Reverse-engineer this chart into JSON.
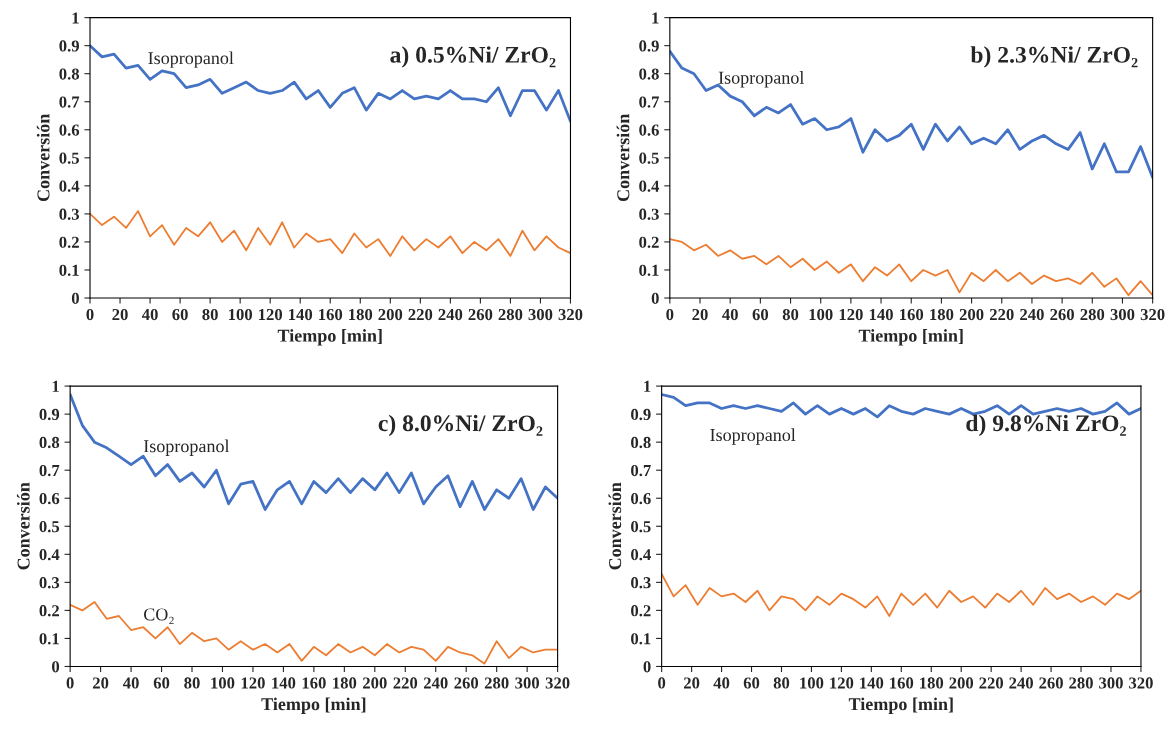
{
  "chart_data": [
    {
      "type": "line",
      "title": "a) 0.5%Ni/ ZrO₂",
      "xlabel": "Tiempo [min]",
      "ylabel": "Conversión",
      "x": [
        0,
        8,
        16,
        24,
        32,
        40,
        48,
        56,
        64,
        72,
        80,
        88,
        96,
        104,
        112,
        120,
        128,
        136,
        144,
        152,
        160,
        168,
        176,
        184,
        192,
        200,
        208,
        216,
        224,
        232,
        240,
        248,
        256,
        264,
        272,
        280,
        288,
        296,
        304,
        312,
        320
      ],
      "series": [
        {
          "color": "#4472c4",
          "values": [
            0.9,
            0.86,
            0.87,
            0.82,
            0.83,
            0.78,
            0.81,
            0.8,
            0.75,
            0.76,
            0.78,
            0.73,
            0.75,
            0.77,
            0.74,
            0.73,
            0.74,
            0.77,
            0.71,
            0.74,
            0.68,
            0.73,
            0.75,
            0.67,
            0.73,
            0.71,
            0.74,
            0.71,
            0.72,
            0.71,
            0.74,
            0.71,
            0.71,
            0.7,
            0.75,
            0.65,
            0.74,
            0.74,
            0.67,
            0.74,
            0.63
          ]
        },
        {
          "color": "#ed7d31",
          "values": [
            0.3,
            0.26,
            0.29,
            0.25,
            0.31,
            0.22,
            0.26,
            0.19,
            0.25,
            0.22,
            0.27,
            0.2,
            0.24,
            0.17,
            0.25,
            0.19,
            0.27,
            0.18,
            0.23,
            0.2,
            0.21,
            0.16,
            0.23,
            0.18,
            0.21,
            0.15,
            0.22,
            0.17,
            0.21,
            0.18,
            0.22,
            0.16,
            0.2,
            0.17,
            0.21,
            0.15,
            0.24,
            0.17,
            0.22,
            0.18,
            0.16
          ]
        }
      ],
      "annotations": [
        "Isopropanol"
      ],
      "xlim": [
        0,
        320
      ],
      "xticks": [
        0,
        20,
        40,
        60,
        80,
        100,
        120,
        140,
        160,
        180,
        200,
        220,
        240,
        260,
        280,
        300,
        320
      ],
      "ylim": [
        0,
        1
      ],
      "yticks": [
        0,
        0.1,
        0.2,
        0.3,
        0.4,
        0.5,
        0.6,
        0.7,
        0.8,
        0.9,
        1
      ],
      "grid": false
    },
    {
      "type": "line",
      "title": "b) 2.3%Ni/ ZrO₂",
      "xlabel": "Tiempo [min]",
      "ylabel": "Conversión",
      "x": [
        0,
        8,
        16,
        24,
        32,
        40,
        48,
        56,
        64,
        72,
        80,
        88,
        96,
        104,
        112,
        120,
        128,
        136,
        144,
        152,
        160,
        168,
        176,
        184,
        192,
        200,
        208,
        216,
        224,
        232,
        240,
        248,
        256,
        264,
        272,
        280,
        288,
        296,
        304,
        312,
        320
      ],
      "series": [
        {
          "color": "#4472c4",
          "values": [
            0.88,
            0.82,
            0.8,
            0.74,
            0.76,
            0.72,
            0.7,
            0.65,
            0.68,
            0.66,
            0.69,
            0.62,
            0.64,
            0.6,
            0.61,
            0.64,
            0.52,
            0.6,
            0.56,
            0.58,
            0.62,
            0.53,
            0.62,
            0.56,
            0.61,
            0.55,
            0.57,
            0.55,
            0.6,
            0.53,
            0.56,
            0.58,
            0.55,
            0.53,
            0.59,
            0.46,
            0.55,
            0.45,
            0.45,
            0.54,
            0.43
          ]
        },
        {
          "color": "#ed7d31",
          "values": [
            0.21,
            0.2,
            0.17,
            0.19,
            0.15,
            0.17,
            0.14,
            0.15,
            0.12,
            0.15,
            0.11,
            0.14,
            0.1,
            0.13,
            0.09,
            0.12,
            0.06,
            0.11,
            0.08,
            0.12,
            0.06,
            0.1,
            0.08,
            0.1,
            0.02,
            0.09,
            0.06,
            0.1,
            0.06,
            0.09,
            0.05,
            0.08,
            0.06,
            0.07,
            0.05,
            0.09,
            0.04,
            0.07,
            0.01,
            0.06,
            0.01
          ]
        }
      ],
      "annotations": [
        "Isopropanol"
      ],
      "xlim": [
        0,
        320
      ],
      "xticks": [
        0,
        20,
        40,
        60,
        80,
        100,
        120,
        140,
        160,
        180,
        200,
        220,
        240,
        260,
        280,
        300,
        320
      ],
      "ylim": [
        0,
        1
      ],
      "yticks": [
        0,
        0.1,
        0.2,
        0.3,
        0.4,
        0.5,
        0.6,
        0.7,
        0.8,
        0.9,
        1
      ],
      "grid": false
    },
    {
      "type": "line",
      "title": "c) 8.0%Ni/ ZrO₂",
      "xlabel": "Tiempo [min]",
      "ylabel": "Conversión",
      "x": [
        0,
        8,
        16,
        24,
        32,
        40,
        48,
        56,
        64,
        72,
        80,
        88,
        96,
        104,
        112,
        120,
        128,
        136,
        144,
        152,
        160,
        168,
        176,
        184,
        192,
        200,
        208,
        216,
        224,
        232,
        240,
        248,
        256,
        264,
        272,
        280,
        288,
        296,
        304,
        312,
        320
      ],
      "series": [
        {
          "color": "#4472c4",
          "values": [
            0.97,
            0.86,
            0.8,
            0.78,
            0.75,
            0.72,
            0.75,
            0.68,
            0.72,
            0.66,
            0.69,
            0.64,
            0.7,
            0.58,
            0.65,
            0.66,
            0.56,
            0.63,
            0.66,
            0.58,
            0.66,
            0.62,
            0.67,
            0.62,
            0.67,
            0.63,
            0.69,
            0.62,
            0.69,
            0.58,
            0.64,
            0.68,
            0.57,
            0.66,
            0.56,
            0.63,
            0.6,
            0.67,
            0.56,
            0.64,
            0.6
          ]
        },
        {
          "color": "#ed7d31",
          "values": [
            0.22,
            0.2,
            0.23,
            0.17,
            0.18,
            0.13,
            0.14,
            0.1,
            0.14,
            0.08,
            0.12,
            0.09,
            0.1,
            0.06,
            0.09,
            0.06,
            0.08,
            0.05,
            0.08,
            0.02,
            0.07,
            0.04,
            0.08,
            0.05,
            0.07,
            0.04,
            0.08,
            0.05,
            0.07,
            0.06,
            0.02,
            0.07,
            0.05,
            0.04,
            0.01,
            0.09,
            0.03,
            0.07,
            0.05,
            0.06,
            0.06
          ]
        }
      ],
      "annotations": [
        "Isopropanol",
        "CO₂"
      ],
      "xlim": [
        0,
        320
      ],
      "xticks": [
        0,
        20,
        40,
        60,
        80,
        100,
        120,
        140,
        160,
        180,
        200,
        220,
        240,
        260,
        280,
        300,
        320
      ],
      "ylim": [
        0,
        1
      ],
      "yticks": [
        0,
        0.1,
        0.2,
        0.3,
        0.4,
        0.5,
        0.6,
        0.7,
        0.8,
        0.9,
        1
      ],
      "grid": false
    },
    {
      "type": "line",
      "title": "d) 9.8%Ni ZrO₂",
      "xlabel": "Tiempo [min]",
      "ylabel": "Conversión",
      "x": [
        0,
        8,
        16,
        24,
        32,
        40,
        48,
        56,
        64,
        72,
        80,
        88,
        96,
        104,
        112,
        120,
        128,
        136,
        144,
        152,
        160,
        168,
        176,
        184,
        192,
        200,
        208,
        216,
        224,
        232,
        240,
        248,
        256,
        264,
        272,
        280,
        288,
        296,
        304,
        312,
        320
      ],
      "series": [
        {
          "color": "#4472c4",
          "values": [
            0.97,
            0.96,
            0.93,
            0.94,
            0.94,
            0.92,
            0.93,
            0.92,
            0.93,
            0.92,
            0.91,
            0.94,
            0.9,
            0.93,
            0.9,
            0.92,
            0.9,
            0.92,
            0.89,
            0.93,
            0.91,
            0.9,
            0.92,
            0.91,
            0.9,
            0.92,
            0.9,
            0.91,
            0.93,
            0.9,
            0.93,
            0.9,
            0.91,
            0.92,
            0.91,
            0.92,
            0.9,
            0.91,
            0.94,
            0.9,
            0.92
          ]
        },
        {
          "color": "#ed7d31",
          "values": [
            0.33,
            0.25,
            0.29,
            0.22,
            0.28,
            0.25,
            0.26,
            0.23,
            0.27,
            0.2,
            0.25,
            0.24,
            0.2,
            0.25,
            0.22,
            0.26,
            0.24,
            0.21,
            0.25,
            0.18,
            0.26,
            0.22,
            0.26,
            0.21,
            0.27,
            0.23,
            0.25,
            0.21,
            0.26,
            0.23,
            0.27,
            0.22,
            0.28,
            0.24,
            0.26,
            0.23,
            0.25,
            0.22,
            0.26,
            0.24,
            0.27
          ]
        }
      ],
      "annotations": [
        "Isopropanol"
      ],
      "xlim": [
        0,
        320
      ],
      "xticks": [
        0,
        20,
        40,
        60,
        80,
        100,
        120,
        140,
        160,
        180,
        200,
        220,
        240,
        260,
        280,
        300,
        320
      ],
      "ylim": [
        0,
        1
      ],
      "yticks": [
        0,
        0.1,
        0.2,
        0.3,
        0.4,
        0.5,
        0.6,
        0.7,
        0.8,
        0.9,
        1
      ],
      "grid": false
    }
  ]
}
